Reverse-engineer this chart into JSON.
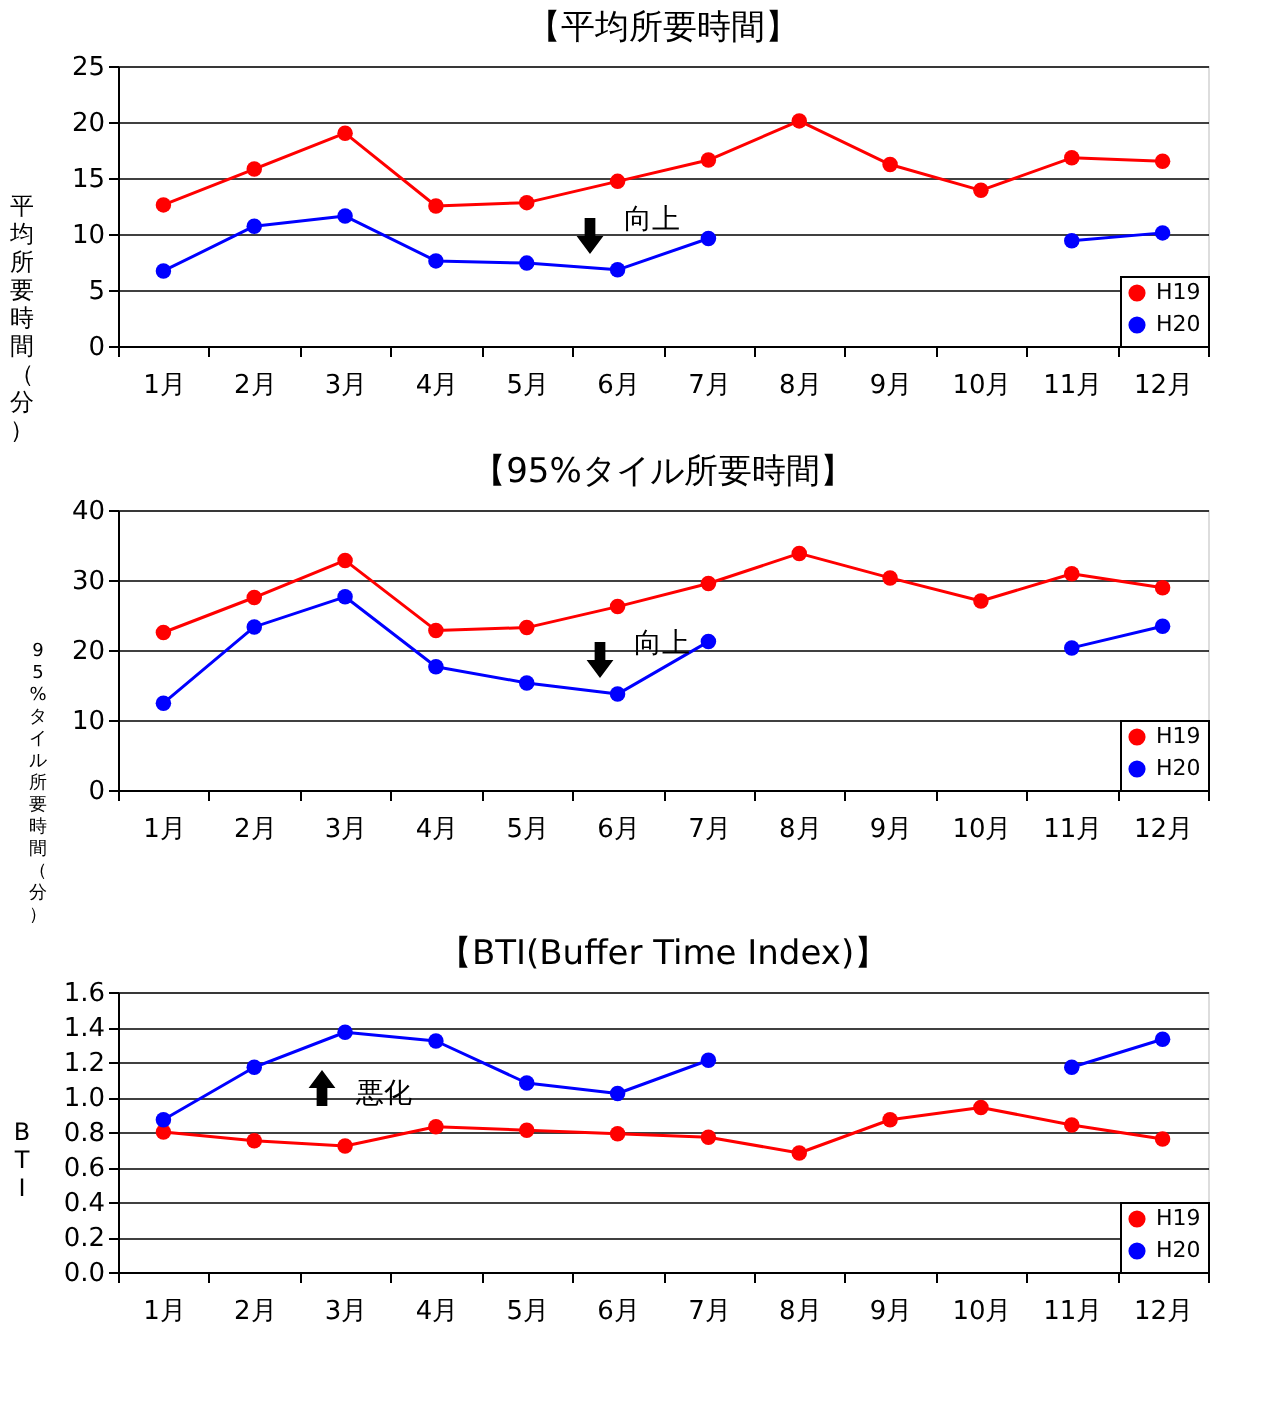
{
  "chart_data": [
    {
      "type": "line",
      "title": "【平均所要時間】",
      "ylabel": "平均所要時間（分）",
      "categories": [
        "1月",
        "2月",
        "3月",
        "4月",
        "5月",
        "6月",
        "7月",
        "8月",
        "9月",
        "10月",
        "11月",
        "12月"
      ],
      "ylim": [
        0,
        25
      ],
      "yticks": [
        0,
        5,
        10,
        15,
        20,
        25
      ],
      "grid": "y",
      "legend": "bottom right",
      "marker": "circle",
      "annotations": [
        "向上"
      ],
      "series": [
        {
          "name": "H19",
          "color": "#ff0000",
          "values": [
            12.6,
            15.8,
            19.0,
            12.5,
            12.8,
            14.7,
            16.6,
            20.1,
            16.2,
            13.9,
            16.8,
            16.5
          ]
        },
        {
          "name": "H20",
          "color": "#0000ff",
          "values": [
            6.7,
            10.7,
            11.6,
            7.6,
            7.4,
            6.8,
            9.6,
            null,
            null,
            null,
            9.4,
            10.1
          ]
        }
      ]
    },
    {
      "type": "line",
      "title": "【95%タイル所要時間】",
      "ylabel": "95%タイル所要時間（分）",
      "categories": [
        "1月",
        "2月",
        "3月",
        "4月",
        "5月",
        "6月",
        "7月",
        "8月",
        "9月",
        "10月",
        "11月",
        "12月"
      ],
      "ylim": [
        0,
        40
      ],
      "yticks": [
        0,
        10,
        20,
        30,
        40
      ],
      "grid": "y",
      "legend": "bottom right",
      "marker": "circle",
      "annotations": [
        "向上"
      ],
      "series": [
        {
          "name": "H19",
          "color": "#ff0000",
          "values": [
            22.5,
            27.5,
            32.8,
            22.8,
            23.2,
            26.2,
            29.5,
            33.8,
            30.3,
            27.0,
            30.9,
            28.9
          ]
        },
        {
          "name": "H20",
          "color": "#0000ff",
          "values": [
            12.4,
            23.3,
            27.6,
            17.6,
            15.3,
            13.7,
            21.2,
            null,
            null,
            null,
            20.3,
            23.4
          ]
        }
      ]
    },
    {
      "type": "line",
      "title": "【BTI(Buffer Time Index)】",
      "ylabel": "BTI",
      "categories": [
        "1月",
        "2月",
        "3月",
        "4月",
        "5月",
        "6月",
        "7月",
        "8月",
        "9月",
        "10月",
        "11月",
        "12月"
      ],
      "ylim": [
        0,
        1.6
      ],
      "yticks": [
        {
          "value": 0,
          "label": "0.0"
        },
        {
          "value": 0.2,
          "label": "0.2"
        },
        {
          "value": 0.4,
          "label": "0.4"
        },
        {
          "value": 0.6,
          "label": "0.6"
        },
        {
          "value": 0.8,
          "label": "0.8"
        },
        {
          "value": 1.0,
          "label": "1.0"
        },
        {
          "value": 1.2,
          "label": "1.2"
        },
        {
          "value": 1.4,
          "label": "1.4"
        },
        {
          "value": 1.6,
          "label": "1.6"
        }
      ],
      "grid": "y",
      "legend": "bottom right",
      "marker": "circle",
      "annotations": [
        "悪化"
      ],
      "series": [
        {
          "name": "H19",
          "color": "#ff0000",
          "values": [
            0.8,
            0.75,
            0.72,
            0.83,
            0.81,
            0.79,
            0.77,
            0.68,
            0.87,
            0.94,
            0.84,
            0.76
          ]
        },
        {
          "name": "H20",
          "color": "#0000ff",
          "values": [
            0.87,
            1.17,
            1.37,
            1.32,
            1.08,
            1.02,
            1.21,
            null,
            null,
            null,
            1.17,
            1.33
          ]
        }
      ]
    }
  ]
}
